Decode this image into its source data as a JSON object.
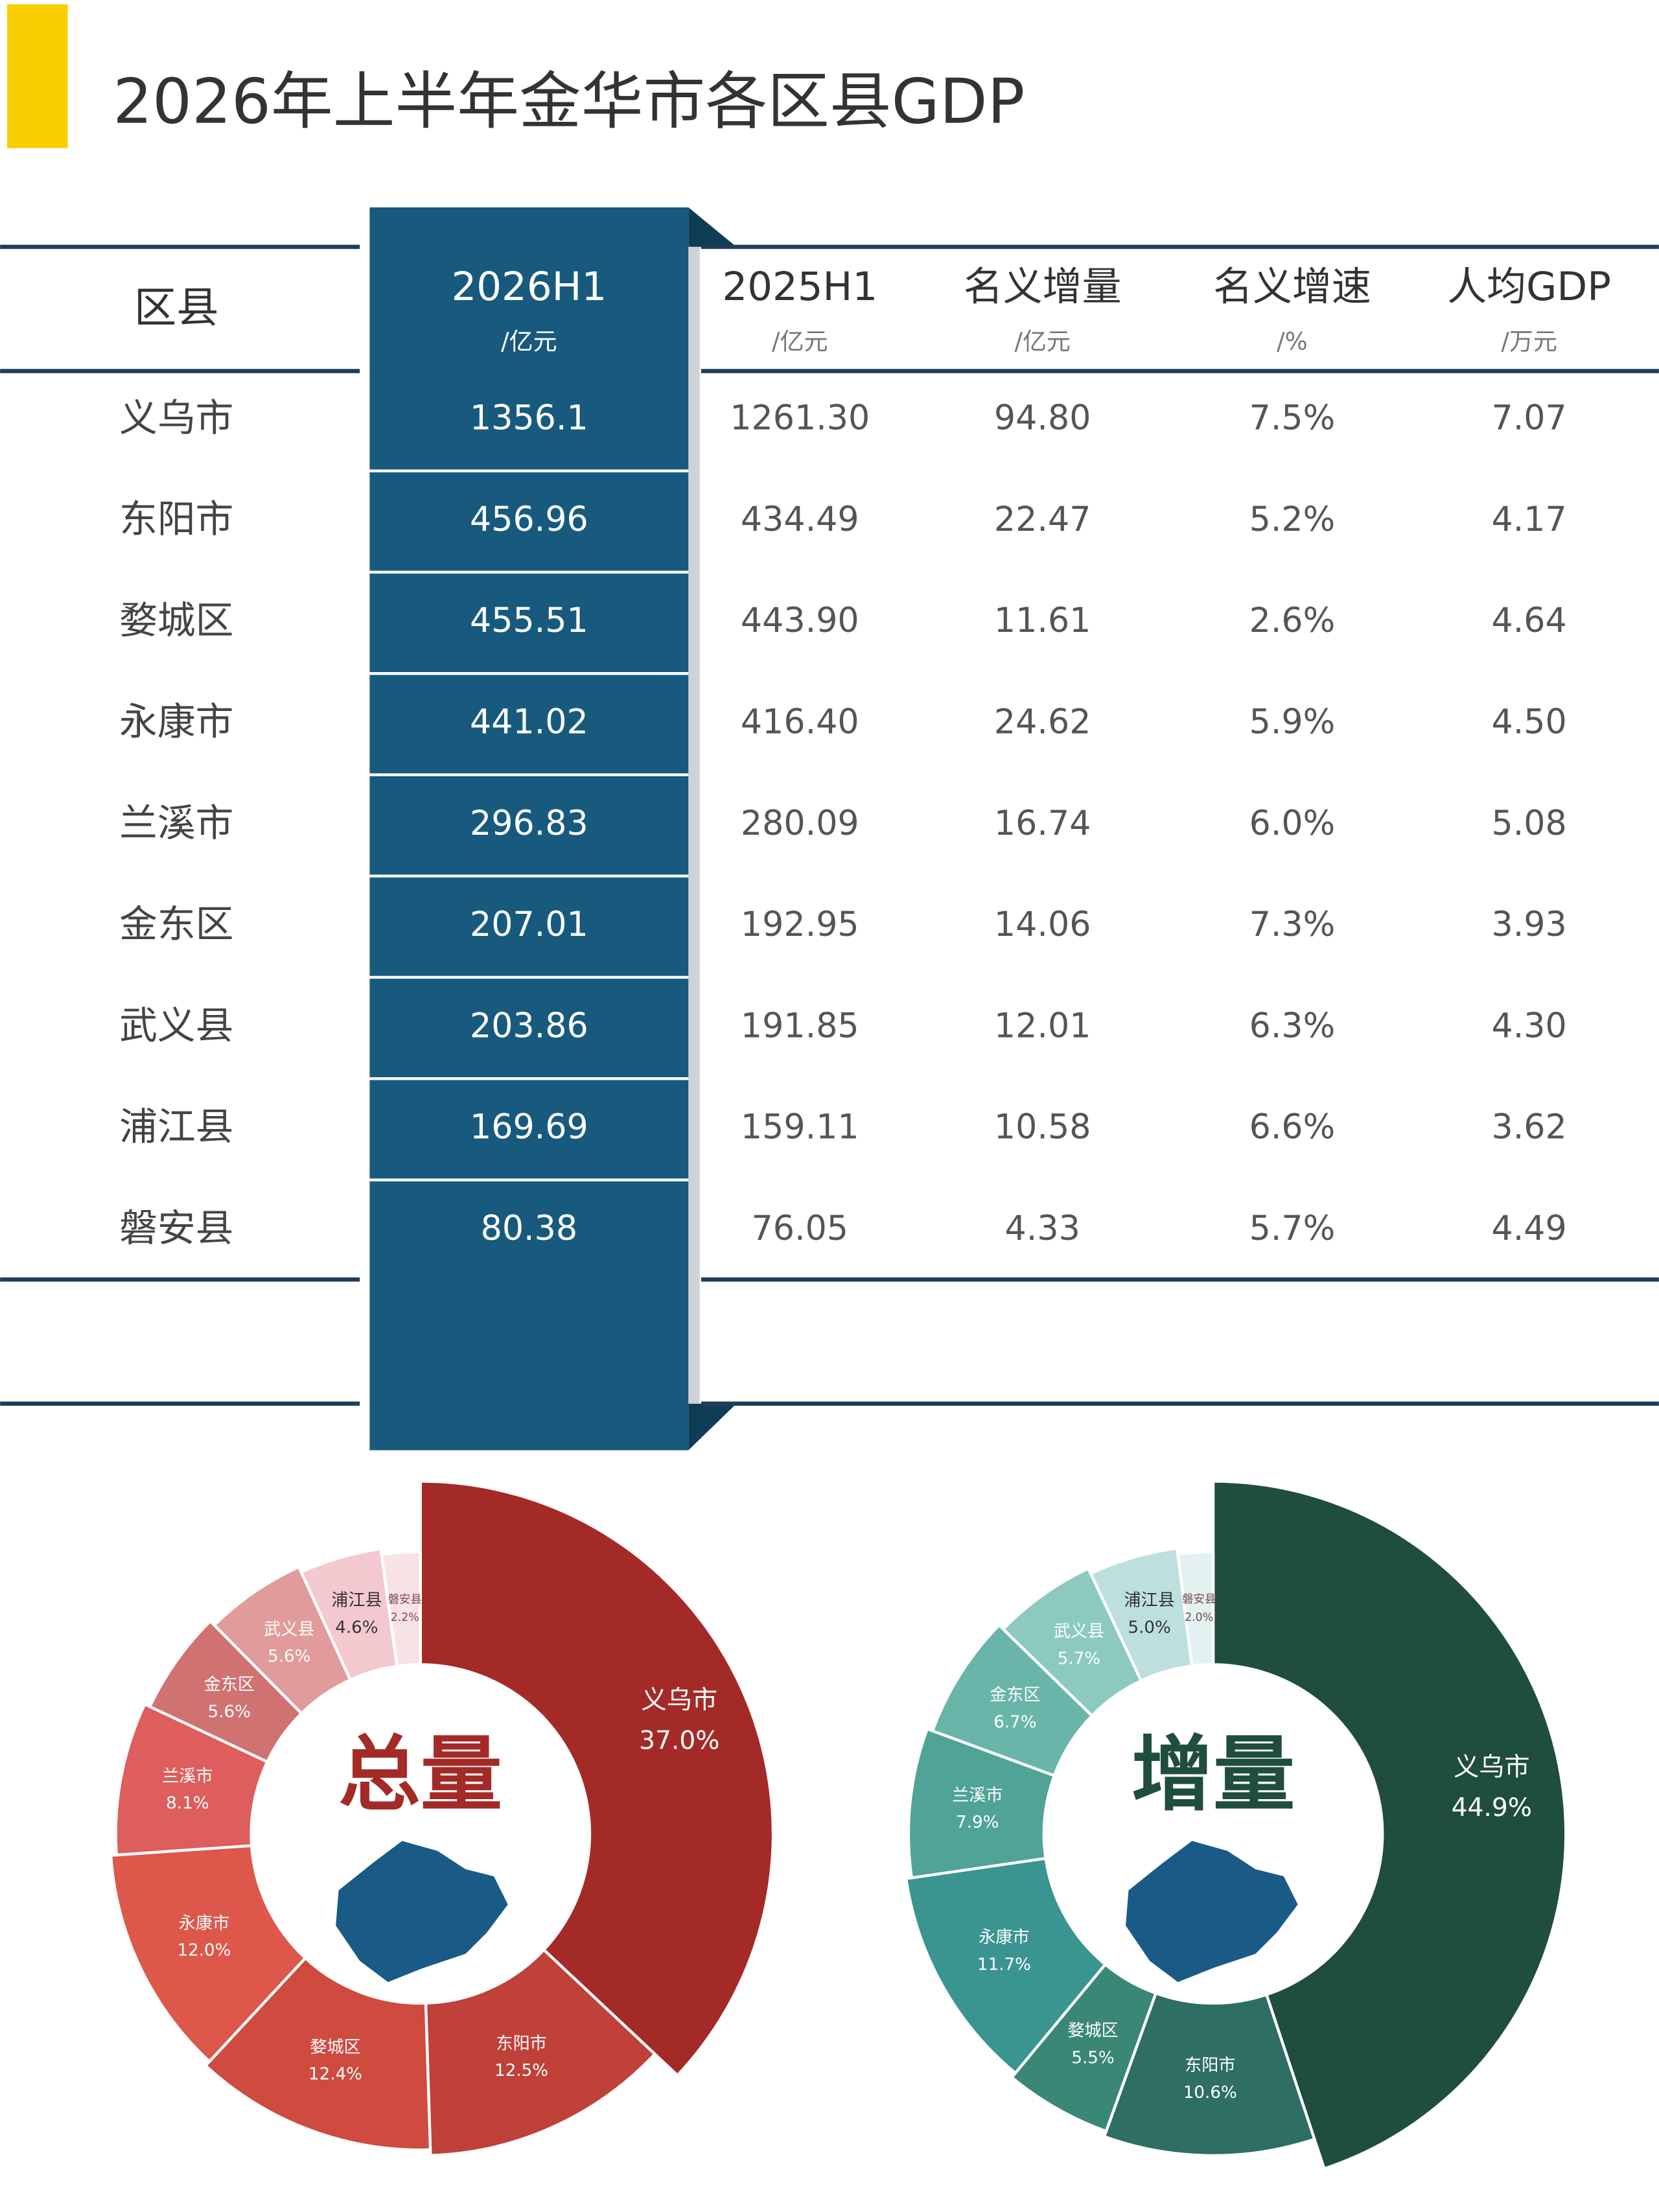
{
  "title": "2026年上半年金华市各区县GDP",
  "table": {
    "header": [
      {
        "name": "区县"
      },
      {
        "name": "2026H1",
        "unit": "/亿元"
      },
      {
        "name": "2025H1",
        "unit": "/亿元"
      },
      {
        "name": "名义增量",
        "unit": "/亿元"
      },
      {
        "name": "名义增速",
        "unit": "/%"
      },
      {
        "name": "人均GDP",
        "unit": "/万元"
      }
    ],
    "rows": [
      [
        "义乌市",
        "1356.1",
        "1261.30",
        "94.80",
        "7.5%",
        "7.07"
      ],
      [
        "东阳市",
        "456.96",
        "434.49",
        "22.47",
        "5.2%",
        "4.17"
      ],
      [
        "婺城区",
        "455.51",
        "443.90",
        "11.61",
        "2.6%",
        "4.64"
      ],
      [
        "永康市",
        "441.02",
        "416.40",
        "24.62",
        "5.9%",
        "4.50"
      ],
      [
        "兰溪市",
        "296.83",
        "280.09",
        "16.74",
        "6.0%",
        "5.08"
      ],
      [
        "金东区",
        "207.01",
        "192.95",
        "14.06",
        "7.3%",
        "3.93"
      ],
      [
        "武义县",
        "203.86",
        "191.85",
        "12.01",
        "6.3%",
        "4.30"
      ],
      [
        "浦江县",
        "169.69",
        "159.11",
        "10.58",
        "6.6%",
        "3.62"
      ],
      [
        "磐安县",
        "80.38",
        "76.05",
        "4.33",
        "5.7%",
        "4.49"
      ]
    ]
  },
  "chart_data": [
    {
      "type": "pie",
      "title": "总量",
      "categories": [
        "义乌市",
        "东阳市",
        "婺城区",
        "永康市",
        "兰溪市",
        "金东区",
        "武义县",
        "浦江县",
        "磐安县"
      ],
      "values": [
        37.0,
        12.5,
        12.4,
        12.0,
        8.1,
        5.6,
        5.6,
        4.6,
        2.2
      ],
      "value_labels": [
        "37.0%",
        "12.5%",
        "12.4%",
        "12.0%",
        "8.1%",
        "5.6%",
        "5.6%",
        "4.6%",
        "2.2%"
      ],
      "colors": [
        "#a42a27",
        "#c0403a",
        "#cf4a3f",
        "#dd574a",
        "#dd5e5c",
        "#cf7270",
        "#e19b9b",
        "#f3c9cf",
        "#f7e2e4"
      ]
    },
    {
      "type": "pie",
      "title": "增量",
      "categories": [
        "义乌市",
        "东阳市",
        "婺城区",
        "永康市",
        "兰溪市",
        "金东区",
        "武义县",
        "浦江县",
        "磐安县"
      ],
      "values": [
        44.9,
        10.6,
        5.5,
        11.7,
        7.9,
        6.7,
        5.7,
        5.0,
        2.0
      ],
      "value_labels": [
        "44.9%",
        "10.6%",
        "5.5%",
        "11.7%",
        "7.9%",
        "6.7%",
        "5.7%",
        "5.0%",
        "2.0%"
      ],
      "colors": [
        "#1f4d3e",
        "#2f6e62",
        "#3a8776",
        "#3a9490",
        "#4fa397",
        "#6ab5aa",
        "#8ccac0",
        "#bde0de",
        "#e3f1f1"
      ]
    }
  ]
}
